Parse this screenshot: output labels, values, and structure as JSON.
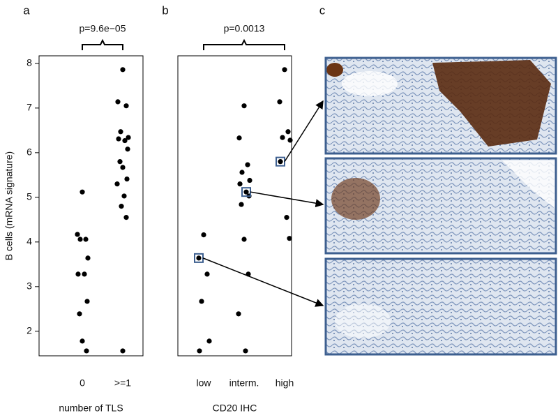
{
  "chart_data": [
    {
      "type": "strip",
      "panel_label": "a",
      "annotation": "p=9.6e−05",
      "y_label": "B cells (mRNA signature)",
      "x_label": "number of TLS",
      "categories": [
        "0",
        ">=1"
      ],
      "values": [
        [
          5.12,
          4.17,
          4.06,
          4.06,
          3.64,
          3.28,
          3.28,
          2.67,
          2.39,
          1.78,
          1.56
        ],
        [
          7.86,
          7.14,
          7.05,
          6.47,
          6.34,
          6.31,
          6.27,
          6.08,
          5.8,
          5.67,
          5.41,
          5.3,
          5.03,
          4.8,
          4.55,
          1.56
        ]
      ],
      "color": "#000000",
      "ylim": [
        1.45,
        8.17
      ],
      "yticks": [
        2,
        3,
        4,
        5,
        6,
        7,
        8
      ]
    },
    {
      "type": "strip",
      "panel_label": "b",
      "annotation": "p=0.0013",
      "x_label": "CD20 IHC",
      "categories": [
        "low",
        "interm.",
        "high"
      ],
      "values": [
        [
          4.16,
          3.64,
          3.28,
          2.67,
          1.78,
          1.56
        ],
        [
          7.05,
          6.33,
          5.73,
          5.56,
          5.38,
          5.3,
          5.12,
          5.03,
          4.84,
          4.06,
          3.28,
          2.39,
          1.56
        ],
        [
          7.86,
          7.14,
          6.47,
          6.34,
          6.28,
          5.8,
          4.55,
          4.08
        ]
      ],
      "color": "#000000",
      "ylim": [
        1.45,
        8.17
      ]
    }
  ],
  "panel_c_label": "c"
}
